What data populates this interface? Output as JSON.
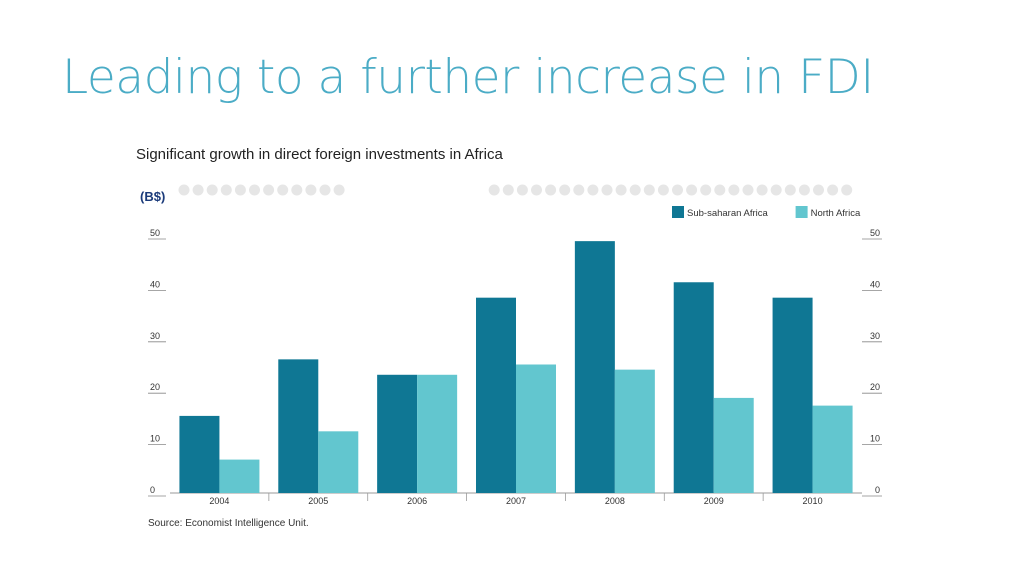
{
  "slide": {
    "title": "Leading to a further increase in FDI",
    "subtitle": "Significant growth in direct foreign investments in Africa"
  },
  "chart_data": {
    "type": "bar",
    "unit_label": "(B$)",
    "categories": [
      "2004",
      "2005",
      "2006",
      "2007",
      "2008",
      "2009",
      "2010"
    ],
    "series": [
      {
        "name": "Sub-saharan Africa",
        "color": "#0f7794",
        "values": [
          15,
          26,
          23,
          38,
          49,
          41,
          38
        ]
      },
      {
        "name": "North Africa",
        "color": "#62c6cf",
        "values": [
          6.5,
          12,
          23,
          25,
          24,
          18.5,
          17
        ]
      }
    ],
    "yticks": [
      0,
      10,
      20,
      30,
      40,
      50
    ],
    "ylim": [
      0,
      50
    ],
    "source": "Source: Economist Intelligence Unit.",
    "legend_position": "top-right",
    "grid": false
  }
}
